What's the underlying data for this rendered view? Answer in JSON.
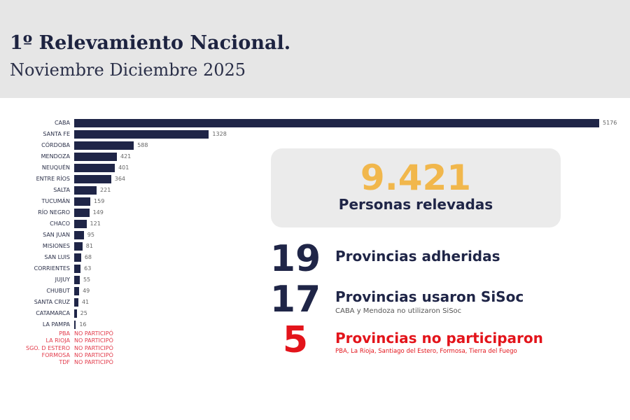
{
  "header": {
    "title": "1º Relevamiento Nacional.",
    "subtitle": "Noviembre Diciembre 2025"
  },
  "chart_data": {
    "type": "bar",
    "orientation": "horizontal",
    "categories": [
      "CABA",
      "SANTA FE",
      "CÓRDOBA",
      "MENDOZA",
      "NEUQUÉN",
      "ENTRE RÍOS",
      "SALTA",
      "TUCUMÁN",
      "RÍO NEGRO",
      "CHACO",
      "SAN JUAN",
      "MISIONES",
      "SAN LUIS",
      "CORRIENTES",
      "JUJUY",
      "CHUBUT",
      "SANTA CRUZ",
      "CATAMARCA",
      "LA PAMPA"
    ],
    "values": [
      5176,
      1328,
      588,
      421,
      401,
      364,
      221,
      159,
      149,
      121,
      95,
      81,
      68,
      63,
      55,
      49,
      41,
      25,
      16
    ],
    "value_labels": [
      "5176",
      "1328",
      "588",
      "421",
      "401",
      "364",
      "221",
      "159",
      "149",
      "121",
      "95",
      "81",
      "68",
      "63",
      "55",
      "49",
      "41",
      "25",
      "16"
    ],
    "bar_color": "#1f2547",
    "not_participated": [
      {
        "name": "PBA",
        "status": "NO PARTICIPÓ"
      },
      {
        "name": "LA RIOJA",
        "status": "NO PARTICIPÓ"
      },
      {
        "name": "SGO. D ESTERO",
        "status": "NO PARTICIPÓ"
      },
      {
        "name": "FORMOSA",
        "status": "NO PARTICIPÓ"
      },
      {
        "name": "TDF",
        "status": "NO PARTICIPÓ"
      }
    ]
  },
  "summary": {
    "total": "9.421",
    "total_label": "Personas relevadas",
    "stats": [
      {
        "number": "19",
        "label": "Provincias adheridas",
        "note": ""
      },
      {
        "number": "17",
        "label": "Provincias usaron SiSoc",
        "note": "CABA y Mendoza no utilizaron SiSoc"
      },
      {
        "number": "5",
        "label": "Provincias no participaron",
        "note": "PBA, La Rioja, Santiago del Estero, Formosa, Tierra del Fuego"
      }
    ]
  },
  "colors": {
    "navy": "#1f2547",
    "gold": "#f1b74c",
    "red": "#e3141b"
  }
}
